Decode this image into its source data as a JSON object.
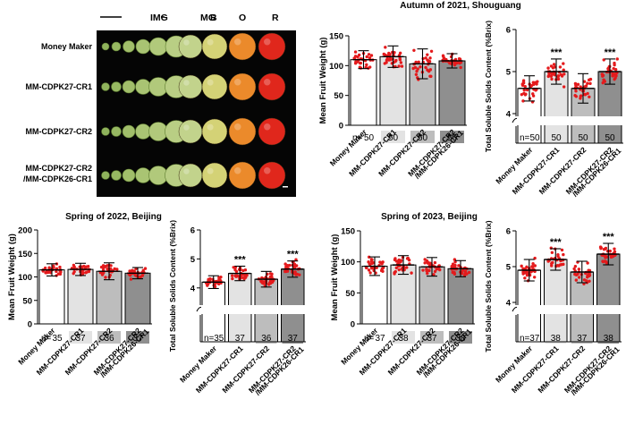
{
  "stages": [
    "IMG",
    "MG",
    "B",
    "O",
    "R"
  ],
  "photo_rows": [
    {
      "line1": "Money Maker",
      "line2": ""
    },
    {
      "line1": "MM-CDPK27-CR1",
      "line2": ""
    },
    {
      "line1": "MM-CDPK27-CR2",
      "line2": ""
    },
    {
      "line1": "MM-CDPK27-CR2",
      "line2": "/MM-CDPK26-CR1"
    }
  ],
  "colors": {
    "dots": "#e41a1c",
    "bar1": "#ffffff",
    "bar2": "#e3e3e3",
    "bar3": "#bdbdbd",
    "bar4": "#8f8f8f",
    "photo_bg": "#050505"
  },
  "n_prefix": "n=",
  "chart_data": [
    {
      "id": "autumn-2021-weight",
      "type": "bar",
      "title": "Autumn of 2021, Shouguang",
      "categories": [
        [
          "Money Maker"
        ],
        [
          "MM-CDPK27-CR1"
        ],
        [
          "MM-CDPK27-CR2"
        ],
        [
          "MM-CDPK27-CR2",
          "/MM-CDPK26-CR1"
        ]
      ],
      "values": [
        110,
        115,
        103,
        108
      ],
      "sd": [
        15,
        18,
        25,
        12
      ],
      "n": [
        "50",
        "50",
        "50",
        "50"
      ],
      "significance": [
        "",
        "",
        "",
        ""
      ],
      "ylabel": "Mean Fruit Weight (g)",
      "ylim": [
        0,
        150
      ],
      "yticks": [
        "0",
        "50",
        "100",
        "150"
      ]
    },
    {
      "id": "autumn-2021-tss",
      "type": "bar",
      "title": "",
      "categories": [
        [
          "Money Maker"
        ],
        [
          "MM-CDPK27-CR1"
        ],
        [
          "MM-CDPK27-CR2"
        ],
        [
          "MM-CDPK27-CR2",
          "/MM-CDPK26-CR1"
        ]
      ],
      "values": [
        4.6,
        5.0,
        4.6,
        5.0
      ],
      "sd": [
        0.3,
        0.3,
        0.35,
        0.3
      ],
      "n": [
        "50",
        "50",
        "50",
        "50"
      ],
      "significance": [
        "",
        "***",
        "",
        "***"
      ],
      "ylabel": "Total Soluble Solids Content (%Brix)",
      "ylim": [
        4,
        6
      ],
      "yticks": [
        "4",
        "5",
        "6"
      ],
      "axis_break": true
    },
    {
      "id": "spring-2022-weight",
      "type": "bar",
      "title": "Spring of 2022, Beijing",
      "categories": [
        [
          "Money Maker"
        ],
        [
          "MM-CDPK27-CR1"
        ],
        [
          "MM-CDPK27-CR2"
        ],
        [
          "MM-CDPK27-CR2",
          "/MM-CDPK26-CR1"
        ]
      ],
      "values": [
        115,
        116,
        112,
        108
      ],
      "sd": [
        13,
        13,
        18,
        12
      ],
      "n": [
        "35",
        "37",
        "36",
        "37"
      ],
      "significance": [
        "",
        "",
        "",
        ""
      ],
      "ylabel": "Mean Fruit Weight (g)",
      "ylim": [
        0,
        200
      ],
      "yticks": [
        "0",
        "50",
        "100",
        "150",
        "200"
      ]
    },
    {
      "id": "spring-2022-tss",
      "type": "bar",
      "title": "",
      "categories": [
        [
          "Money Maker"
        ],
        [
          "MM-CDPK27-CR1"
        ],
        [
          "MM-CDPK27-CR2"
        ],
        [
          "MM-CDPK27-CR2",
          "/MM-CDPK26-CR1"
        ]
      ],
      "values": [
        4.2,
        4.5,
        4.3,
        4.65
      ],
      "sd": [
        0.22,
        0.25,
        0.27,
        0.28
      ],
      "n": [
        "35",
        "37",
        "36",
        "37"
      ],
      "significance": [
        "",
        "***",
        "",
        "***"
      ],
      "ylabel": "Total Soluble Solids Content (%Brix)",
      "ylim": [
        3.5,
        6
      ],
      "yticks": [
        "4",
        "5",
        "6"
      ],
      "axis_break": true
    },
    {
      "id": "spring-2023-weight",
      "type": "bar",
      "title": "Spring of 2023, Beijing",
      "categories": [
        [
          "Money Maker"
        ],
        [
          "MM-CDPK27-CR1"
        ],
        [
          "MM-CDPK27-CR2"
        ],
        [
          "MM-CDPK27-CR2",
          "/MM-CDPK26-CR1"
        ]
      ],
      "values": [
        93,
        95,
        92,
        89
      ],
      "sd": [
        15,
        15,
        15,
        13
      ],
      "n": [
        "37",
        "38",
        "37",
        "38"
      ],
      "significance": [
        "",
        "",
        "",
        ""
      ],
      "ylabel": "Mean Fruit Weight (g)",
      "ylim": [
        0,
        150
      ],
      "yticks": [
        "0",
        "50",
        "100",
        "150"
      ]
    },
    {
      "id": "spring-2023-tss",
      "type": "bar",
      "title": "",
      "categories": [
        [
          "Money Maker"
        ],
        [
          "MM-CDPK27-CR1"
        ],
        [
          "MM-CDPK27-CR2"
        ],
        [
          "MM-CDPK27-CR2",
          "/MM-CDPK26-CR1"
        ]
      ],
      "values": [
        4.9,
        5.2,
        4.85,
        5.35
      ],
      "sd": [
        0.3,
        0.3,
        0.3,
        0.3
      ],
      "n": [
        "37",
        "38",
        "37",
        "38"
      ],
      "significance": [
        "",
        "***",
        "",
        "***"
      ],
      "ylabel": "Total Soluble Solids Content (%Brix)",
      "ylim": [
        4,
        6
      ],
      "yticks": [
        "4",
        "5",
        "6"
      ],
      "axis_break": true
    }
  ]
}
